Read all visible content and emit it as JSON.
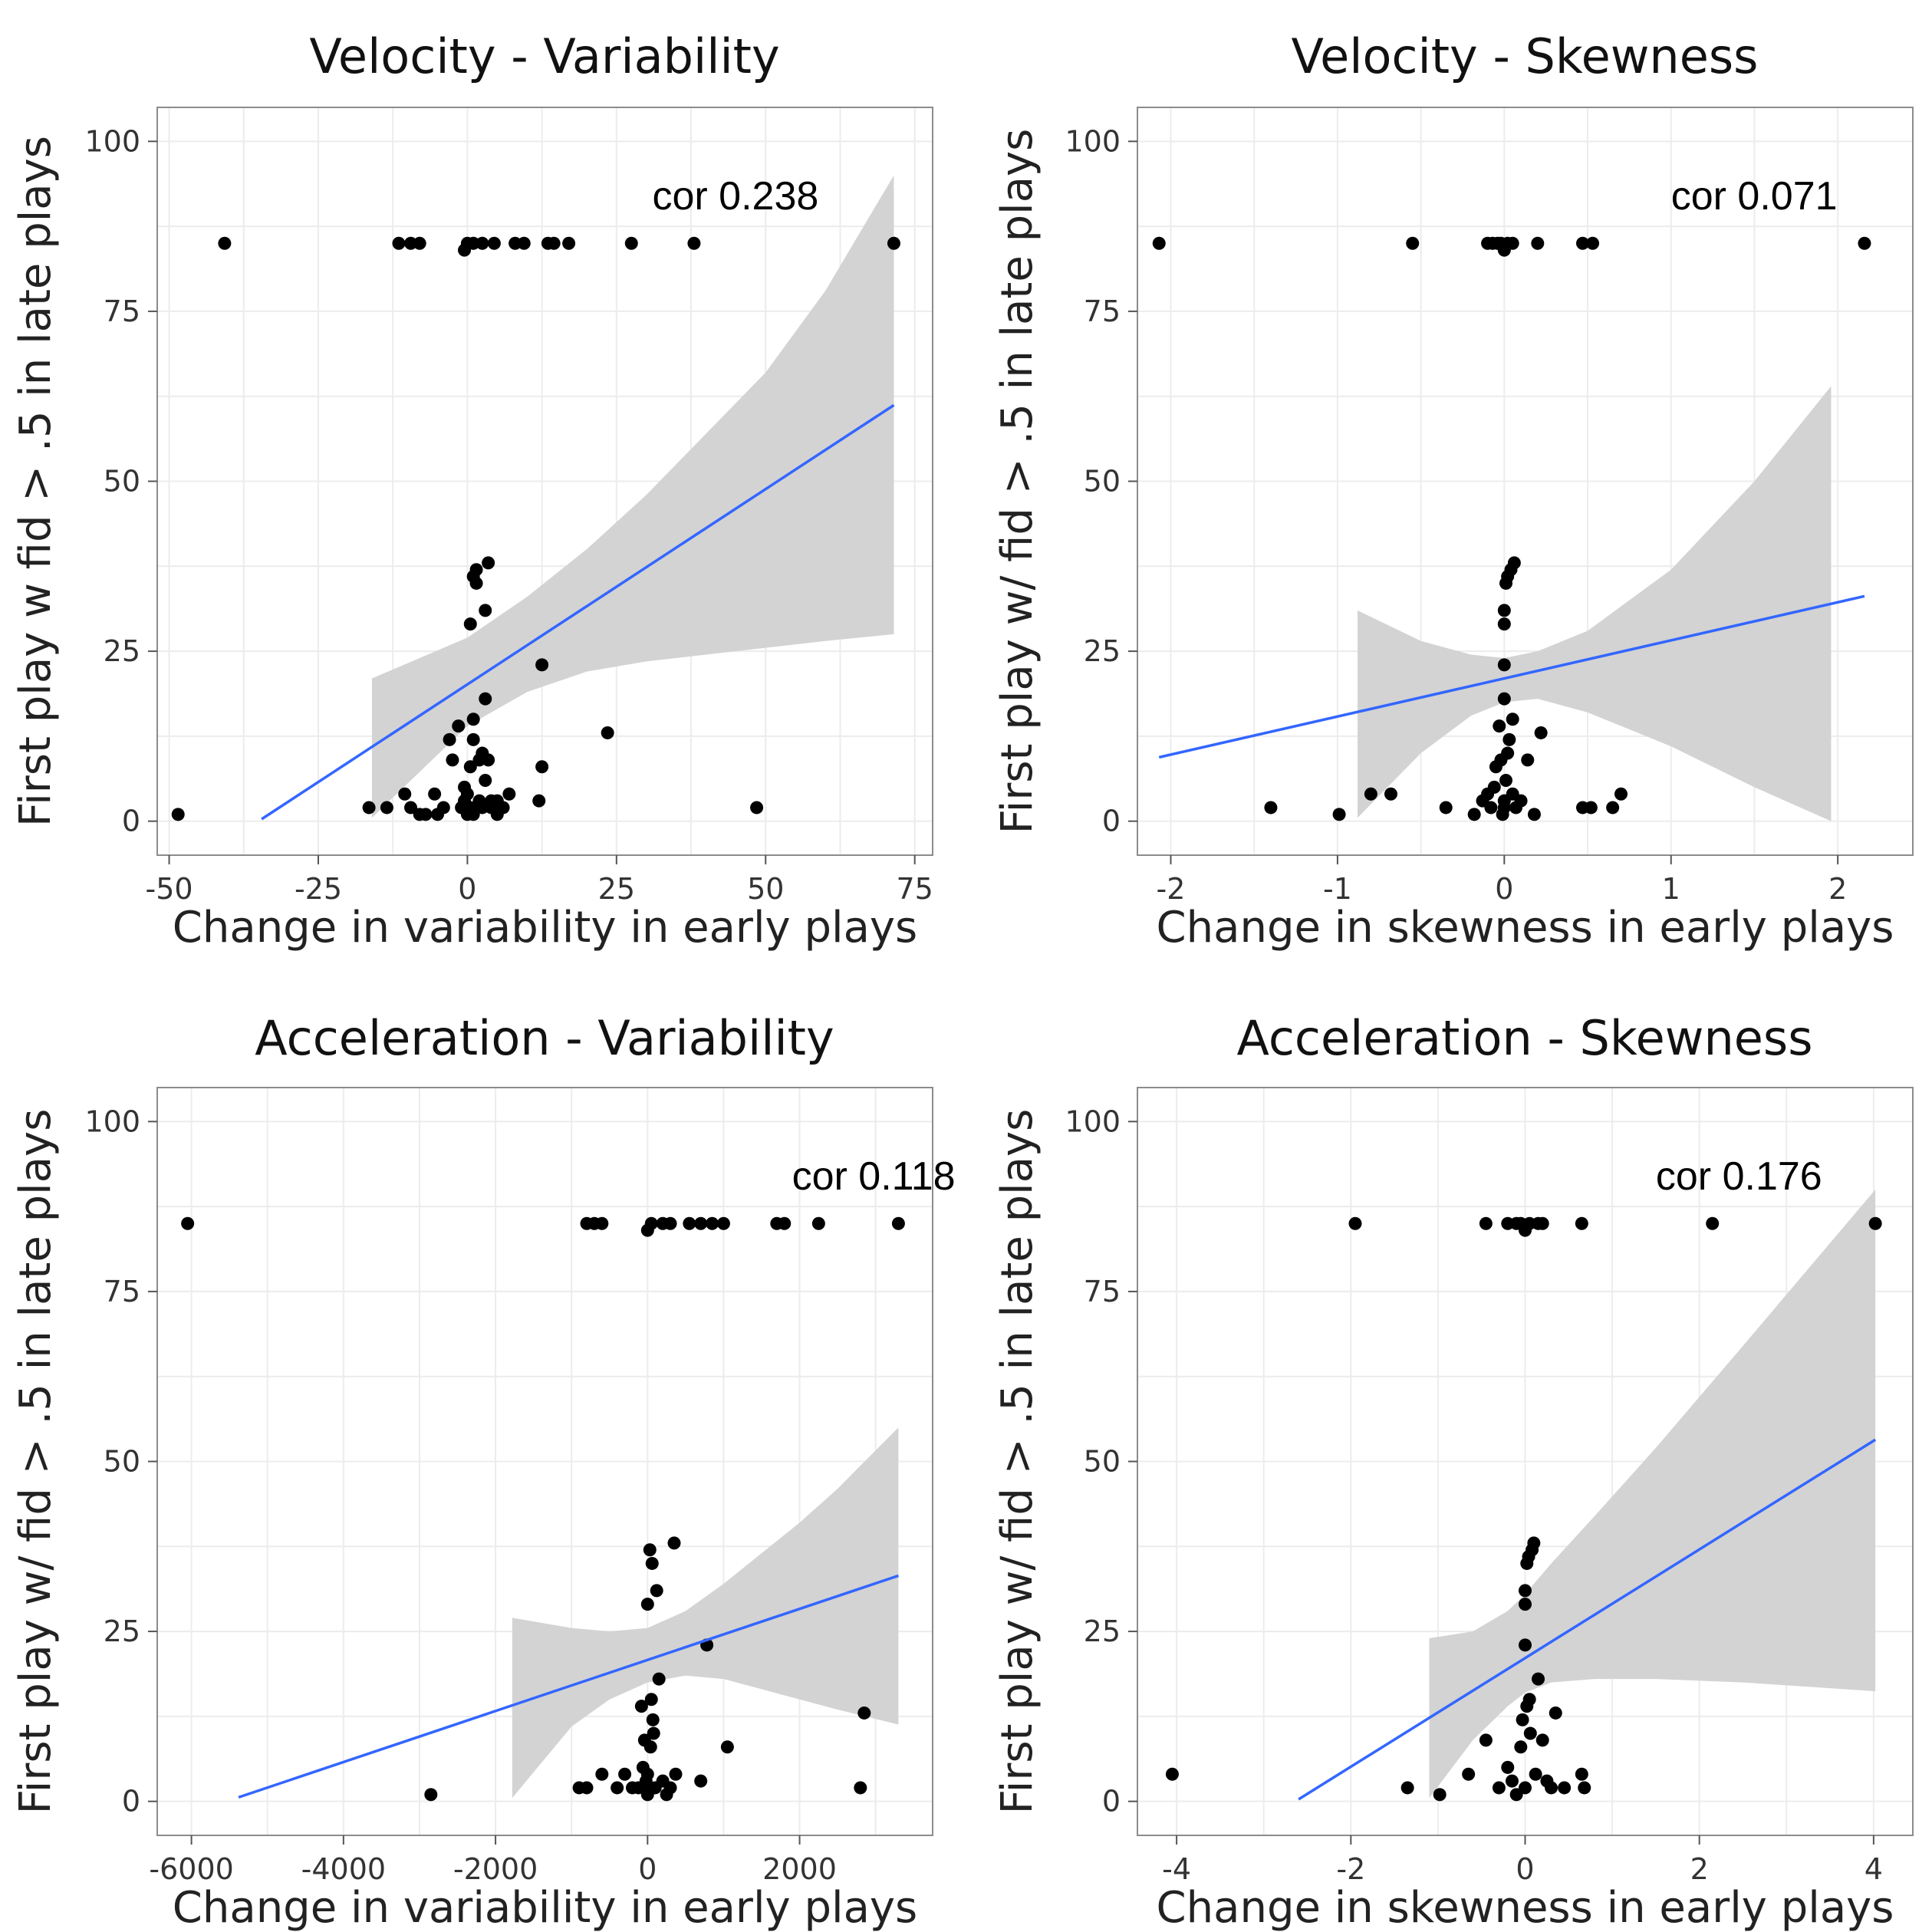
{
  "chart_data": [
    {
      "type": "scatter",
      "title": "Velocity - Variability",
      "xlabel": "Change in variability in early plays",
      "ylabel": "First play w fid > .5 in late plays",
      "xlim": [
        -52,
        78
      ],
      "ylim": [
        -5,
        105
      ],
      "xticks": [
        -50,
        -25,
        0,
        25,
        50,
        75
      ],
      "xtick_labels": [
        "-50",
        "-25",
        "0",
        "25",
        "50",
        "75"
      ],
      "yticks": [
        0,
        25,
        50,
        75,
        100
      ],
      "ytick_labels": [
        "0",
        "25",
        "50",
        "75",
        "100"
      ],
      "annotation": "cor 0.238",
      "annotation_pos": [
        31,
        90
      ],
      "fit_line": {
        "x": [
          -34.5,
          71.5
        ],
        "y": [
          0.3,
          61.2
        ]
      },
      "confidence_band": {
        "x": [
          -16,
          0,
          10,
          20,
          30,
          40,
          50,
          60,
          71.5
        ],
        "upper": [
          21,
          27,
          33,
          40,
          48,
          57,
          66,
          78,
          95
        ],
        "lower": [
          0.5,
          14,
          19,
          22,
          23.5,
          24.5,
          25.5,
          26.5,
          27.5
        ]
      },
      "points": [
        [
          -40.7,
          85
        ],
        [
          -11.5,
          85
        ],
        [
          -9.5,
          85
        ],
        [
          -8,
          85
        ],
        [
          -0.5,
          84
        ],
        [
          0,
          85
        ],
        [
          1,
          85
        ],
        [
          2.5,
          85
        ],
        [
          4.5,
          85
        ],
        [
          8,
          85
        ],
        [
          9.5,
          85
        ],
        [
          13.5,
          85
        ],
        [
          14.5,
          85
        ],
        [
          17,
          85
        ],
        [
          27.5,
          85
        ],
        [
          38,
          85
        ],
        [
          71.5,
          85
        ],
        [
          -48.5,
          1
        ],
        [
          -16.5,
          2
        ],
        [
          -13.5,
          2
        ],
        [
          -10.5,
          4
        ],
        [
          -9.5,
          2
        ],
        [
          -8,
          1
        ],
        [
          -7,
          1
        ],
        [
          -5.5,
          4
        ],
        [
          -5,
          1
        ],
        [
          -4,
          2
        ],
        [
          -3,
          12
        ],
        [
          -2.5,
          9
        ],
        [
          -1.5,
          14
        ],
        [
          -1,
          2
        ],
        [
          -0.5,
          5
        ],
        [
          -0.5,
          3
        ],
        [
          0,
          1
        ],
        [
          0,
          4
        ],
        [
          0.5,
          8
        ],
        [
          0.5,
          29
        ],
        [
          0.5,
          2
        ],
        [
          1,
          12
        ],
        [
          1,
          15
        ],
        [
          1,
          1
        ],
        [
          1,
          36
        ],
        [
          1.5,
          35
        ],
        [
          1.5,
          37
        ],
        [
          2,
          9
        ],
        [
          2,
          3
        ],
        [
          2.5,
          10
        ],
        [
          2.5,
          2
        ],
        [
          3,
          31
        ],
        [
          3,
          18
        ],
        [
          3,
          6
        ],
        [
          3.5,
          38
        ],
        [
          3.5,
          9
        ],
        [
          4,
          2
        ],
        [
          4,
          3
        ],
        [
          5,
          1
        ],
        [
          5,
          3
        ],
        [
          6,
          2
        ],
        [
          7,
          4
        ],
        [
          12,
          3
        ],
        [
          12.5,
          8
        ],
        [
          12.5,
          23
        ],
        [
          23.5,
          13
        ],
        [
          48.5,
          2
        ]
      ]
    },
    {
      "type": "scatter",
      "title": "Velocity - Skewness",
      "xlabel": "Change in skewness in early plays",
      "ylabel": "First play w/ fid > .5 in late plays",
      "xlim": [
        -2.2,
        2.45
      ],
      "ylim": [
        -5,
        105
      ],
      "xticks": [
        -2,
        -1,
        0,
        1,
        2
      ],
      "xtick_labels": [
        "-2",
        "-1",
        "0",
        "1",
        "2"
      ],
      "yticks": [
        0,
        25,
        50,
        75,
        100
      ],
      "ytick_labels": [
        "0",
        "25",
        "50",
        "75",
        "100"
      ],
      "annotation": "cor 0.071",
      "annotation_pos": [
        1.0,
        90
      ],
      "fit_line": {
        "x": [
          -2.07,
          2.16
        ],
        "y": [
          9.4,
          33.1
        ]
      },
      "confidence_band": {
        "x": [
          -0.88,
          -0.5,
          -0.2,
          0,
          0.2,
          0.5,
          1.0,
          1.5,
          1.96
        ],
        "upper": [
          31,
          26.5,
          24.5,
          24,
          25,
          28,
          37,
          50,
          64
        ],
        "lower": [
          0.5,
          10,
          15.5,
          17.5,
          18,
          16,
          11,
          5,
          0
        ]
      },
      "points": [
        [
          -2.07,
          85
        ],
        [
          -0.55,
          85
        ],
        [
          -0.1,
          85
        ],
        [
          -0.07,
          85
        ],
        [
          -0.04,
          85
        ],
        [
          -0.02,
          85
        ],
        [
          0,
          84
        ],
        [
          0.02,
          85
        ],
        [
          0.05,
          85
        ],
        [
          0.2,
          85
        ],
        [
          0.47,
          85
        ],
        [
          0.53,
          85
        ],
        [
          2.16,
          85
        ],
        [
          -1.4,
          2
        ],
        [
          -0.99,
          1
        ],
        [
          -0.8,
          4
        ],
        [
          -0.68,
          4
        ],
        [
          -0.35,
          2
        ],
        [
          -0.18,
          1
        ],
        [
          -0.13,
          3
        ],
        [
          -0.1,
          4
        ],
        [
          -0.08,
          2
        ],
        [
          -0.06,
          5
        ],
        [
          -0.05,
          8
        ],
        [
          -0.03,
          14
        ],
        [
          -0.02,
          9
        ],
        [
          -0.01,
          1
        ],
        [
          0,
          3
        ],
        [
          0,
          23
        ],
        [
          0,
          18
        ],
        [
          0,
          2
        ],
        [
          0,
          29
        ],
        [
          0,
          31
        ],
        [
          0.01,
          35
        ],
        [
          0.01,
          6
        ],
        [
          0.02,
          36
        ],
        [
          0.02,
          10
        ],
        [
          0.03,
          12
        ],
        [
          0.04,
          37
        ],
        [
          0.05,
          15
        ],
        [
          0.05,
          4
        ],
        [
          0.06,
          38
        ],
        [
          0.07,
          2
        ],
        [
          0.1,
          3
        ],
        [
          0.14,
          9
        ],
        [
          0.18,
          1
        ],
        [
          0.22,
          13
        ],
        [
          0.47,
          2
        ],
        [
          0.52,
          2
        ],
        [
          0.65,
          2
        ],
        [
          0.7,
          4
        ]
      ]
    },
    {
      "type": "scatter",
      "title": "Acceleration - Variability",
      "xlabel": "Change in variability in early plays",
      "ylabel": "First play w/ fid > .5 in late plays",
      "xlim": [
        -6450,
        3750
      ],
      "ylim": [
        -5,
        105
      ],
      "xticks": [
        -6000,
        -4000,
        -2000,
        0,
        2000
      ],
      "xtick_labels": [
        "-6000",
        "-4000",
        "-2000",
        "0",
        "2000"
      ],
      "yticks": [
        0,
        25,
        50,
        75,
        100
      ],
      "ytick_labels": [
        "0",
        "25",
        "50",
        "75",
        "100"
      ],
      "annotation": "cor 0.118",
      "annotation_pos": [
        1900,
        90
      ],
      "fit_line": {
        "x": [
          -5380,
          3300
        ],
        "y": [
          0.6,
          33.2
        ]
      },
      "confidence_band": {
        "x": [
          -1780,
          -1000,
          -500,
          0,
          500,
          1000,
          1500,
          2000,
          2500,
          3300
        ],
        "upper": [
          27,
          25.5,
          25,
          25.5,
          28,
          32,
          36.5,
          41,
          46,
          55
        ],
        "lower": [
          0.5,
          11,
          15,
          17.5,
          18.5,
          18,
          16.5,
          15,
          13.5,
          11.3
        ]
      },
      "points": [
        [
          -6050,
          85
        ],
        [
          -800,
          85
        ],
        [
          -700,
          85
        ],
        [
          -600,
          85
        ],
        [
          0,
          84
        ],
        [
          50,
          85
        ],
        [
          200,
          85
        ],
        [
          300,
          85
        ],
        [
          550,
          85
        ],
        [
          700,
          85
        ],
        [
          850,
          85
        ],
        [
          1000,
          85
        ],
        [
          1700,
          85
        ],
        [
          1800,
          85
        ],
        [
          2250,
          85
        ],
        [
          3300,
          85
        ],
        [
          -2850,
          1
        ],
        [
          -900,
          2
        ],
        [
          -800,
          2
        ],
        [
          -600,
          4
        ],
        [
          -400,
          2
        ],
        [
          -300,
          4
        ],
        [
          -200,
          2
        ],
        [
          -120,
          2
        ],
        [
          -80,
          14
        ],
        [
          -60,
          5
        ],
        [
          -40,
          9
        ],
        [
          -20,
          3
        ],
        [
          0,
          1
        ],
        [
          0,
          29
        ],
        [
          0,
          4
        ],
        [
          20,
          2
        ],
        [
          30,
          37
        ],
        [
          40,
          8
        ],
        [
          50,
          15
        ],
        [
          60,
          35
        ],
        [
          70,
          12
        ],
        [
          80,
          10
        ],
        [
          100,
          2
        ],
        [
          120,
          31
        ],
        [
          150,
          18
        ],
        [
          200,
          3
        ],
        [
          250,
          1
        ],
        [
          300,
          2
        ],
        [
          350,
          38
        ],
        [
          370,
          4
        ],
        [
          700,
          3
        ],
        [
          780,
          23
        ],
        [
          1050,
          8
        ],
        [
          2800,
          2
        ],
        [
          2850,
          13
        ]
      ]
    },
    {
      "type": "scatter",
      "title": "Acceleration - Skewness",
      "xlabel": "Change in skewness in early plays",
      "ylabel": "First play w/ fid > .5 in late plays",
      "xlim": [
        -4.45,
        4.45
      ],
      "ylim": [
        -5,
        105
      ],
      "xticks": [
        -4,
        -2,
        0,
        2,
        4
      ],
      "xtick_labels": [
        "-4",
        "-2",
        "0",
        "2",
        "4"
      ],
      "annotation": "cor 0.176",
      "annotation_pos": [
        1.5,
        90
      ],
      "yticks": [
        0,
        25,
        50,
        75,
        100
      ],
      "ytick_labels": [
        "0",
        "25",
        "50",
        "75",
        "100"
      ],
      "fit_line": {
        "x": [
          -2.6,
          4.02
        ],
        "y": [
          0.3,
          53.2
        ]
      },
      "confidence_band": {
        "x": [
          -1.1,
          -0.6,
          -0.2,
          0,
          0.3,
          0.8,
          1.5,
          2.5,
          4.02
        ],
        "upper": [
          24,
          25,
          28,
          30.5,
          35,
          42,
          52,
          67,
          90
        ],
        "lower": [
          0.5,
          9,
          14,
          16,
          17.5,
          18,
          18,
          17.5,
          16.2
        ]
      },
      "points": [
        [
          -1.95,
          85
        ],
        [
          -0.45,
          85
        ],
        [
          -0.2,
          85
        ],
        [
          -0.1,
          85
        ],
        [
          -0.05,
          85
        ],
        [
          0,
          84
        ],
        [
          0.05,
          85
        ],
        [
          0.15,
          85
        ],
        [
          0.2,
          85
        ],
        [
          0.65,
          85
        ],
        [
          2.15,
          85
        ],
        [
          4.02,
          85
        ],
        [
          -4.05,
          4
        ],
        [
          -1.35,
          2
        ],
        [
          -0.98,
          1
        ],
        [
          -0.65,
          4
        ],
        [
          -0.45,
          9
        ],
        [
          -0.3,
          2
        ],
        [
          -0.2,
          5
        ],
        [
          -0.15,
          3
        ],
        [
          -0.1,
          1
        ],
        [
          -0.05,
          8
        ],
        [
          -0.03,
          12
        ],
        [
          0,
          2
        ],
        [
          0,
          23
        ],
        [
          0,
          29
        ],
        [
          0,
          31
        ],
        [
          0.02,
          35
        ],
        [
          0.02,
          14
        ],
        [
          0.04,
          36
        ],
        [
          0.05,
          15
        ],
        [
          0.06,
          10
        ],
        [
          0.08,
          37
        ],
        [
          0.1,
          38
        ],
        [
          0.12,
          4
        ],
        [
          0.15,
          18
        ],
        [
          0.2,
          9
        ],
        [
          0.25,
          3
        ],
        [
          0.3,
          2
        ],
        [
          0.35,
          13
        ],
        [
          0.45,
          2
        ],
        [
          0.65,
          4
        ],
        [
          0.68,
          2
        ]
      ]
    }
  ]
}
